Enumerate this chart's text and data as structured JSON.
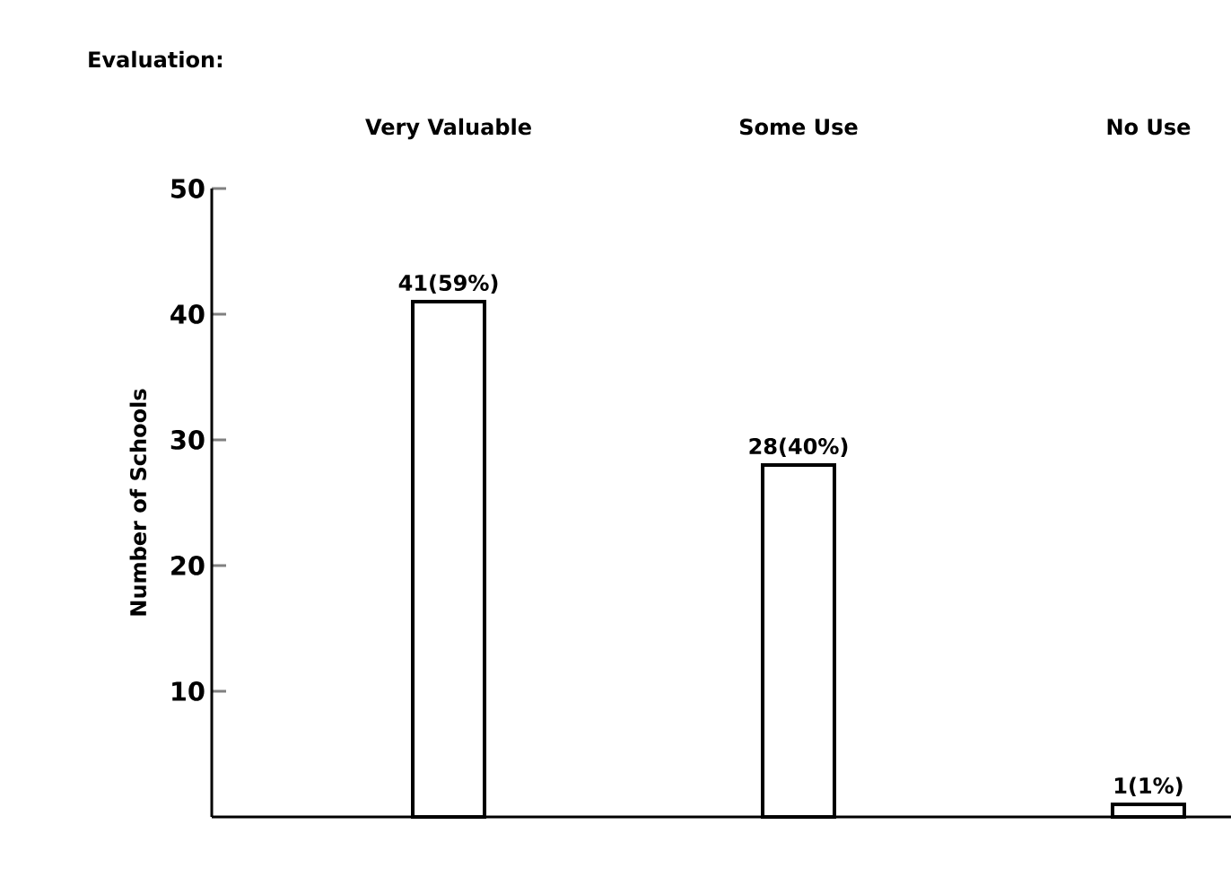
{
  "chart_data": {
    "type": "bar",
    "title": "Evaluation:",
    "ylabel": "Number of Schools",
    "categories": [
      "Very Valuable",
      "Some Use",
      "No Use"
    ],
    "values": [
      41,
      28,
      1
    ],
    "value_labels": [
      "41(59%)",
      "28(40%)",
      "1(1%)"
    ],
    "color": "#000000",
    "ylim": [
      0,
      50
    ],
    "yticks": [
      10,
      20,
      30,
      40,
      50
    ]
  }
}
